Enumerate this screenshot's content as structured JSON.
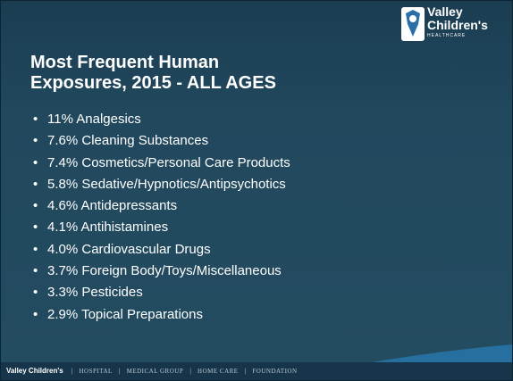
{
  "slide": {
    "title": [
      "Most Frequent Human",
      "Exposures, 2015 -  ALL AGES"
    ],
    "logo": {
      "line1": "Valley",
      "line2": "Children's",
      "line3": "HEALTHCARE"
    },
    "bullets": [
      "11%  Analgesics",
      "7.6% Cleaning Substances",
      "7.4% Cosmetics/Personal Care Products",
      "5.8% Sedative/Hypnotics/Antipsychotics",
      "4.6% Antidepressants",
      "4.1% Antihistamines",
      "4.0% Cardiovascular Drugs",
      "3.7% Foreign Body/Toys/Miscellaneous",
      "3.3% Pesticides",
      "2.9% Topical Preparations"
    ],
    "footer": {
      "brand": "Valley Children's",
      "links": [
        "HOSPITAL",
        "MEDICAL GROUP",
        "HOME CARE",
        "FOUNDATION"
      ]
    }
  }
}
